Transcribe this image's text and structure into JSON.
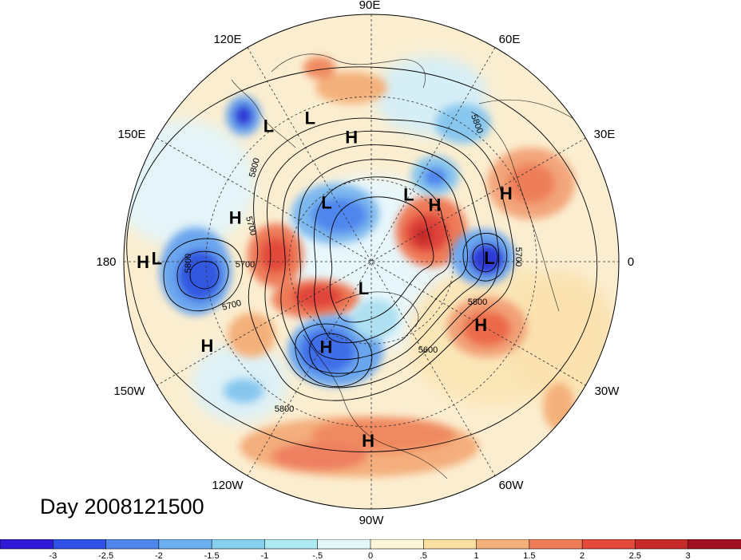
{
  "title": "Day 2008121500",
  "longitude_labels": [
    "90E",
    "60E",
    "30E",
    "0",
    "30W",
    "60W",
    "90W",
    "120W",
    "150W",
    "180",
    "150E",
    "120E"
  ],
  "pressure_centers": [
    {
      "type": "L",
      "lon": 113,
      "lat": 33
    },
    {
      "type": "H",
      "lon": 99,
      "lat": 44
    },
    {
      "type": "L",
      "lon": 127,
      "lat": 28
    },
    {
      "type": "H",
      "lon": 162,
      "lat": 38
    },
    {
      "type": "H",
      "lon": 180,
      "lat": 7
    },
    {
      "type": "L",
      "lon": 179,
      "lat": 12
    },
    {
      "type": "H",
      "lon": -153,
      "lat": 23
    },
    {
      "type": "H",
      "lon": -118,
      "lat": 55
    },
    {
      "type": "L",
      "lon": -106,
      "lat": 80
    },
    {
      "type": "H",
      "lon": -91,
      "lat": 25
    },
    {
      "type": "H",
      "lon": -30,
      "lat": 44
    },
    {
      "type": "L",
      "lon": 2,
      "lat": 47
    },
    {
      "type": "H",
      "lon": 42,
      "lat": 59
    },
    {
      "type": "H",
      "lon": 27,
      "lat": 35
    },
    {
      "type": "L",
      "lon": 127,
      "lat": 63
    },
    {
      "type": "L",
      "lon": 61,
      "lat": 62
    }
  ],
  "contour_labels": [
    "5800",
    "5700",
    "5800",
    "5700",
    "5700",
    "5800",
    "5700",
    "5800",
    "5600",
    "5800"
  ],
  "colorbar": {
    "ticks": [
      "-3",
      "-2.5",
      "-2",
      "-1.5",
      "-1",
      "-.5",
      "0",
      ".5",
      "1",
      "1.5",
      "2",
      "2.5",
      "3"
    ],
    "colors": [
      "#2f1ad8",
      "#3050e6",
      "#4f86ee",
      "#6aafee",
      "#87cfee",
      "#aeeaf2",
      "#e4f7fb",
      "#fdf6d8",
      "#f9dfa0",
      "#f4b07a",
      "#ef7e58",
      "#e44a3a",
      "#c82a2a",
      "#a01020"
    ]
  }
}
